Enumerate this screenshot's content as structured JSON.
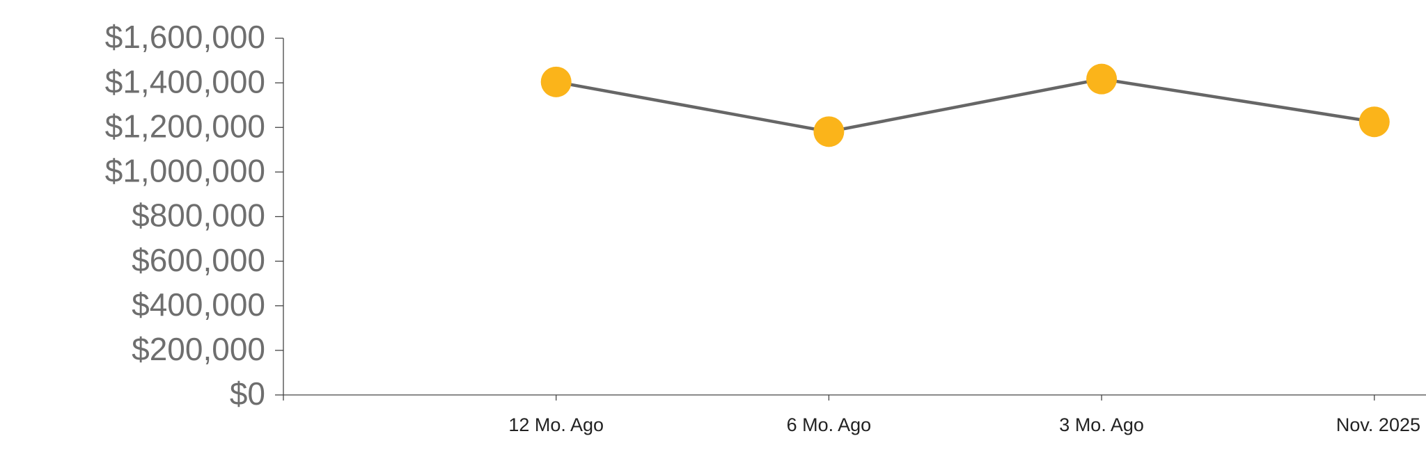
{
  "chart_data": {
    "type": "line",
    "categories": [
      null,
      "12 Mo. Ago",
      "6 Mo. Ago",
      "3 Mo. Ago",
      "Nov. 2025"
    ],
    "series": [
      {
        "color": "#fbb41a",
        "line_color": "#666666",
        "values": [
          null,
          1404000,
          1181000,
          1417000,
          1225000
        ]
      }
    ],
    "ylim": [
      0,
      1600000
    ],
    "yticks": [
      {
        "value": 0,
        "label": "$0"
      },
      {
        "value": 200000,
        "label": "$200,000"
      },
      {
        "value": 400000,
        "label": "$400,000"
      },
      {
        "value": 600000,
        "label": "$600,000"
      },
      {
        "value": 800000,
        "label": "$800,000"
      },
      {
        "value": 1000000,
        "label": "$1,000,000"
      },
      {
        "value": 1200000,
        "label": "$1,200,000"
      },
      {
        "value": 1400000,
        "label": "$1,400,000"
      },
      {
        "value": 1600000,
        "label": "$1,600,000"
      }
    ],
    "grid": false
  }
}
